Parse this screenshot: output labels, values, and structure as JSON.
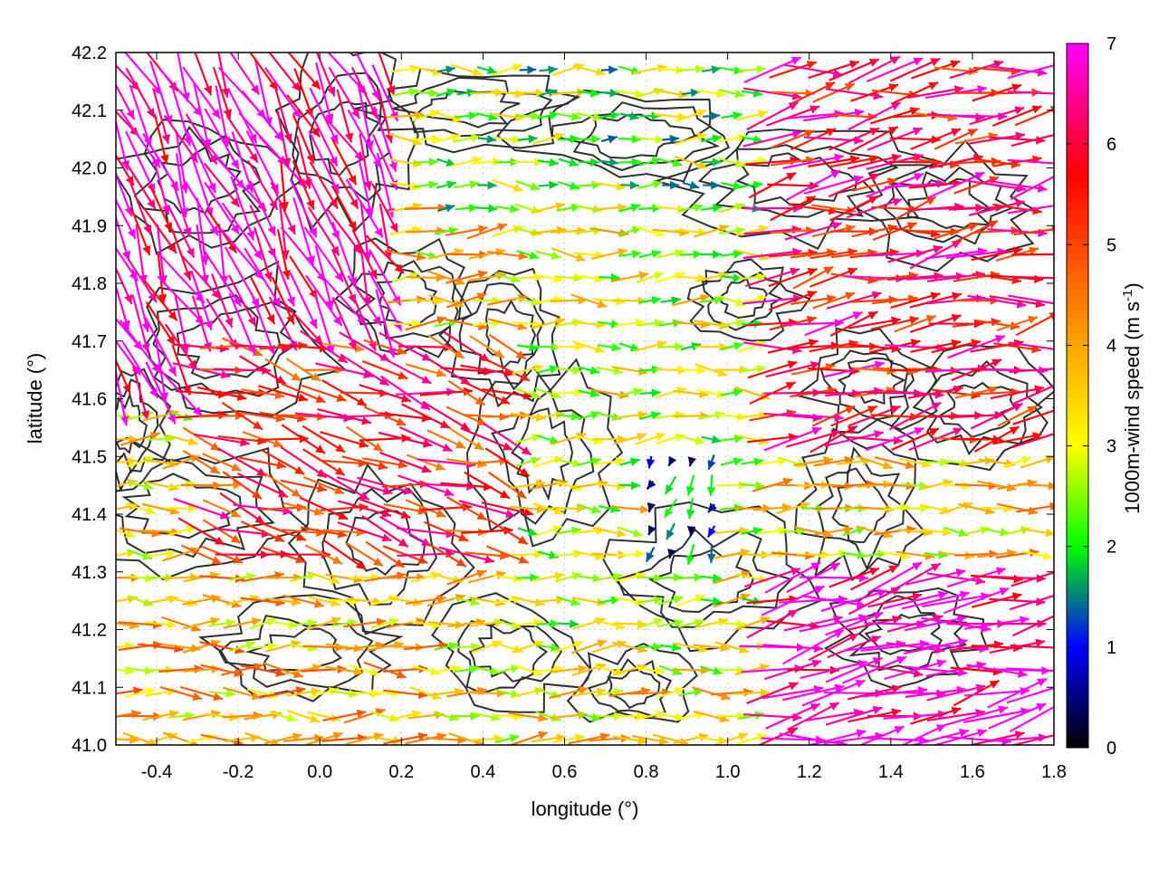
{
  "chart_data": {
    "type": "quiver",
    "xlabel": "longitude (°)",
    "ylabel": "latitude (°)",
    "xlim": [
      -0.5,
      1.8
    ],
    "ylim": [
      41.0,
      42.2
    ],
    "xticks": [
      "-0.4",
      "-0.2",
      "0.0",
      "0.2",
      "0.4",
      "0.6",
      "0.8",
      "1.0",
      "1.2",
      "1.4",
      "1.6",
      "1.8"
    ],
    "xtick_values": [
      -0.4,
      -0.2,
      0.0,
      0.2,
      0.4,
      0.6,
      0.8,
      1.0,
      1.2,
      1.4,
      1.6,
      1.8
    ],
    "yticks": [
      "41.0",
      "41.1",
      "41.2",
      "41.3",
      "41.4",
      "41.5",
      "41.6",
      "41.7",
      "41.8",
      "41.9",
      "42.0",
      "42.1",
      "42.2"
    ],
    "ytick_values": [
      41.0,
      41.1,
      41.2,
      41.3,
      41.4,
      41.5,
      41.6,
      41.7,
      41.8,
      41.9,
      42.0,
      42.1,
      42.2
    ],
    "grid": true,
    "colorbar": {
      "label_main": "1000m-wind speed (m s",
      "label_sup": "-1",
      "label_end": ")",
      "range": [
        0,
        7
      ],
      "ticks": [
        "0",
        "1",
        "2",
        "3",
        "4",
        "5",
        "6",
        "7"
      ],
      "tick_values": [
        0,
        1,
        2,
        3,
        4,
        5,
        6,
        7
      ],
      "colors": [
        "#000000",
        "#0000ff",
        "#00ff00",
        "#ffff00",
        "#ffa500",
        "#ff0000",
        "#ff00ff"
      ],
      "color_stops": [
        0,
        1,
        2,
        3,
        4,
        5.7,
        7
      ]
    },
    "field_summary": [
      {
        "region": "northwest (lon -0.5 to 0.2, lat 41.6 to 42.2)",
        "speed": 6.8,
        "direction_deg": 155
      },
      {
        "region": "central west (lon -0.3 to 0.5, lat 41.3 to 41.7)",
        "speed": 5.5,
        "direction_deg": 105
      },
      {
        "region": "southwest (lon -0.5 to 0.3, lat 41.0 to 41.3)",
        "speed": 3.8,
        "direction_deg": 90
      },
      {
        "region": "north central (lon 0.3 to 1.1, lat 41.9 to 42.2)",
        "speed": 2.5,
        "direction_deg": 90
      },
      {
        "region": "central (lon 0.5 to 1.1, lat 41.1 to 41.9)",
        "speed": 3.0,
        "direction_deg": 90
      },
      {
        "region": "east (lon 1.1 to 1.8, lat 41.5 to 42.2)",
        "speed": 5.8,
        "direction_deg": 80
      },
      {
        "region": "southeast (lon 1.1 to 1.8, lat 41.0 to 41.3)",
        "speed": 6.8,
        "direction_deg": 80
      },
      {
        "region": "low-wind pockets (lon 0.8 to 1.0, lat 41.3 to 41.5)",
        "speed": 1.0,
        "direction_deg": 200
      }
    ]
  }
}
